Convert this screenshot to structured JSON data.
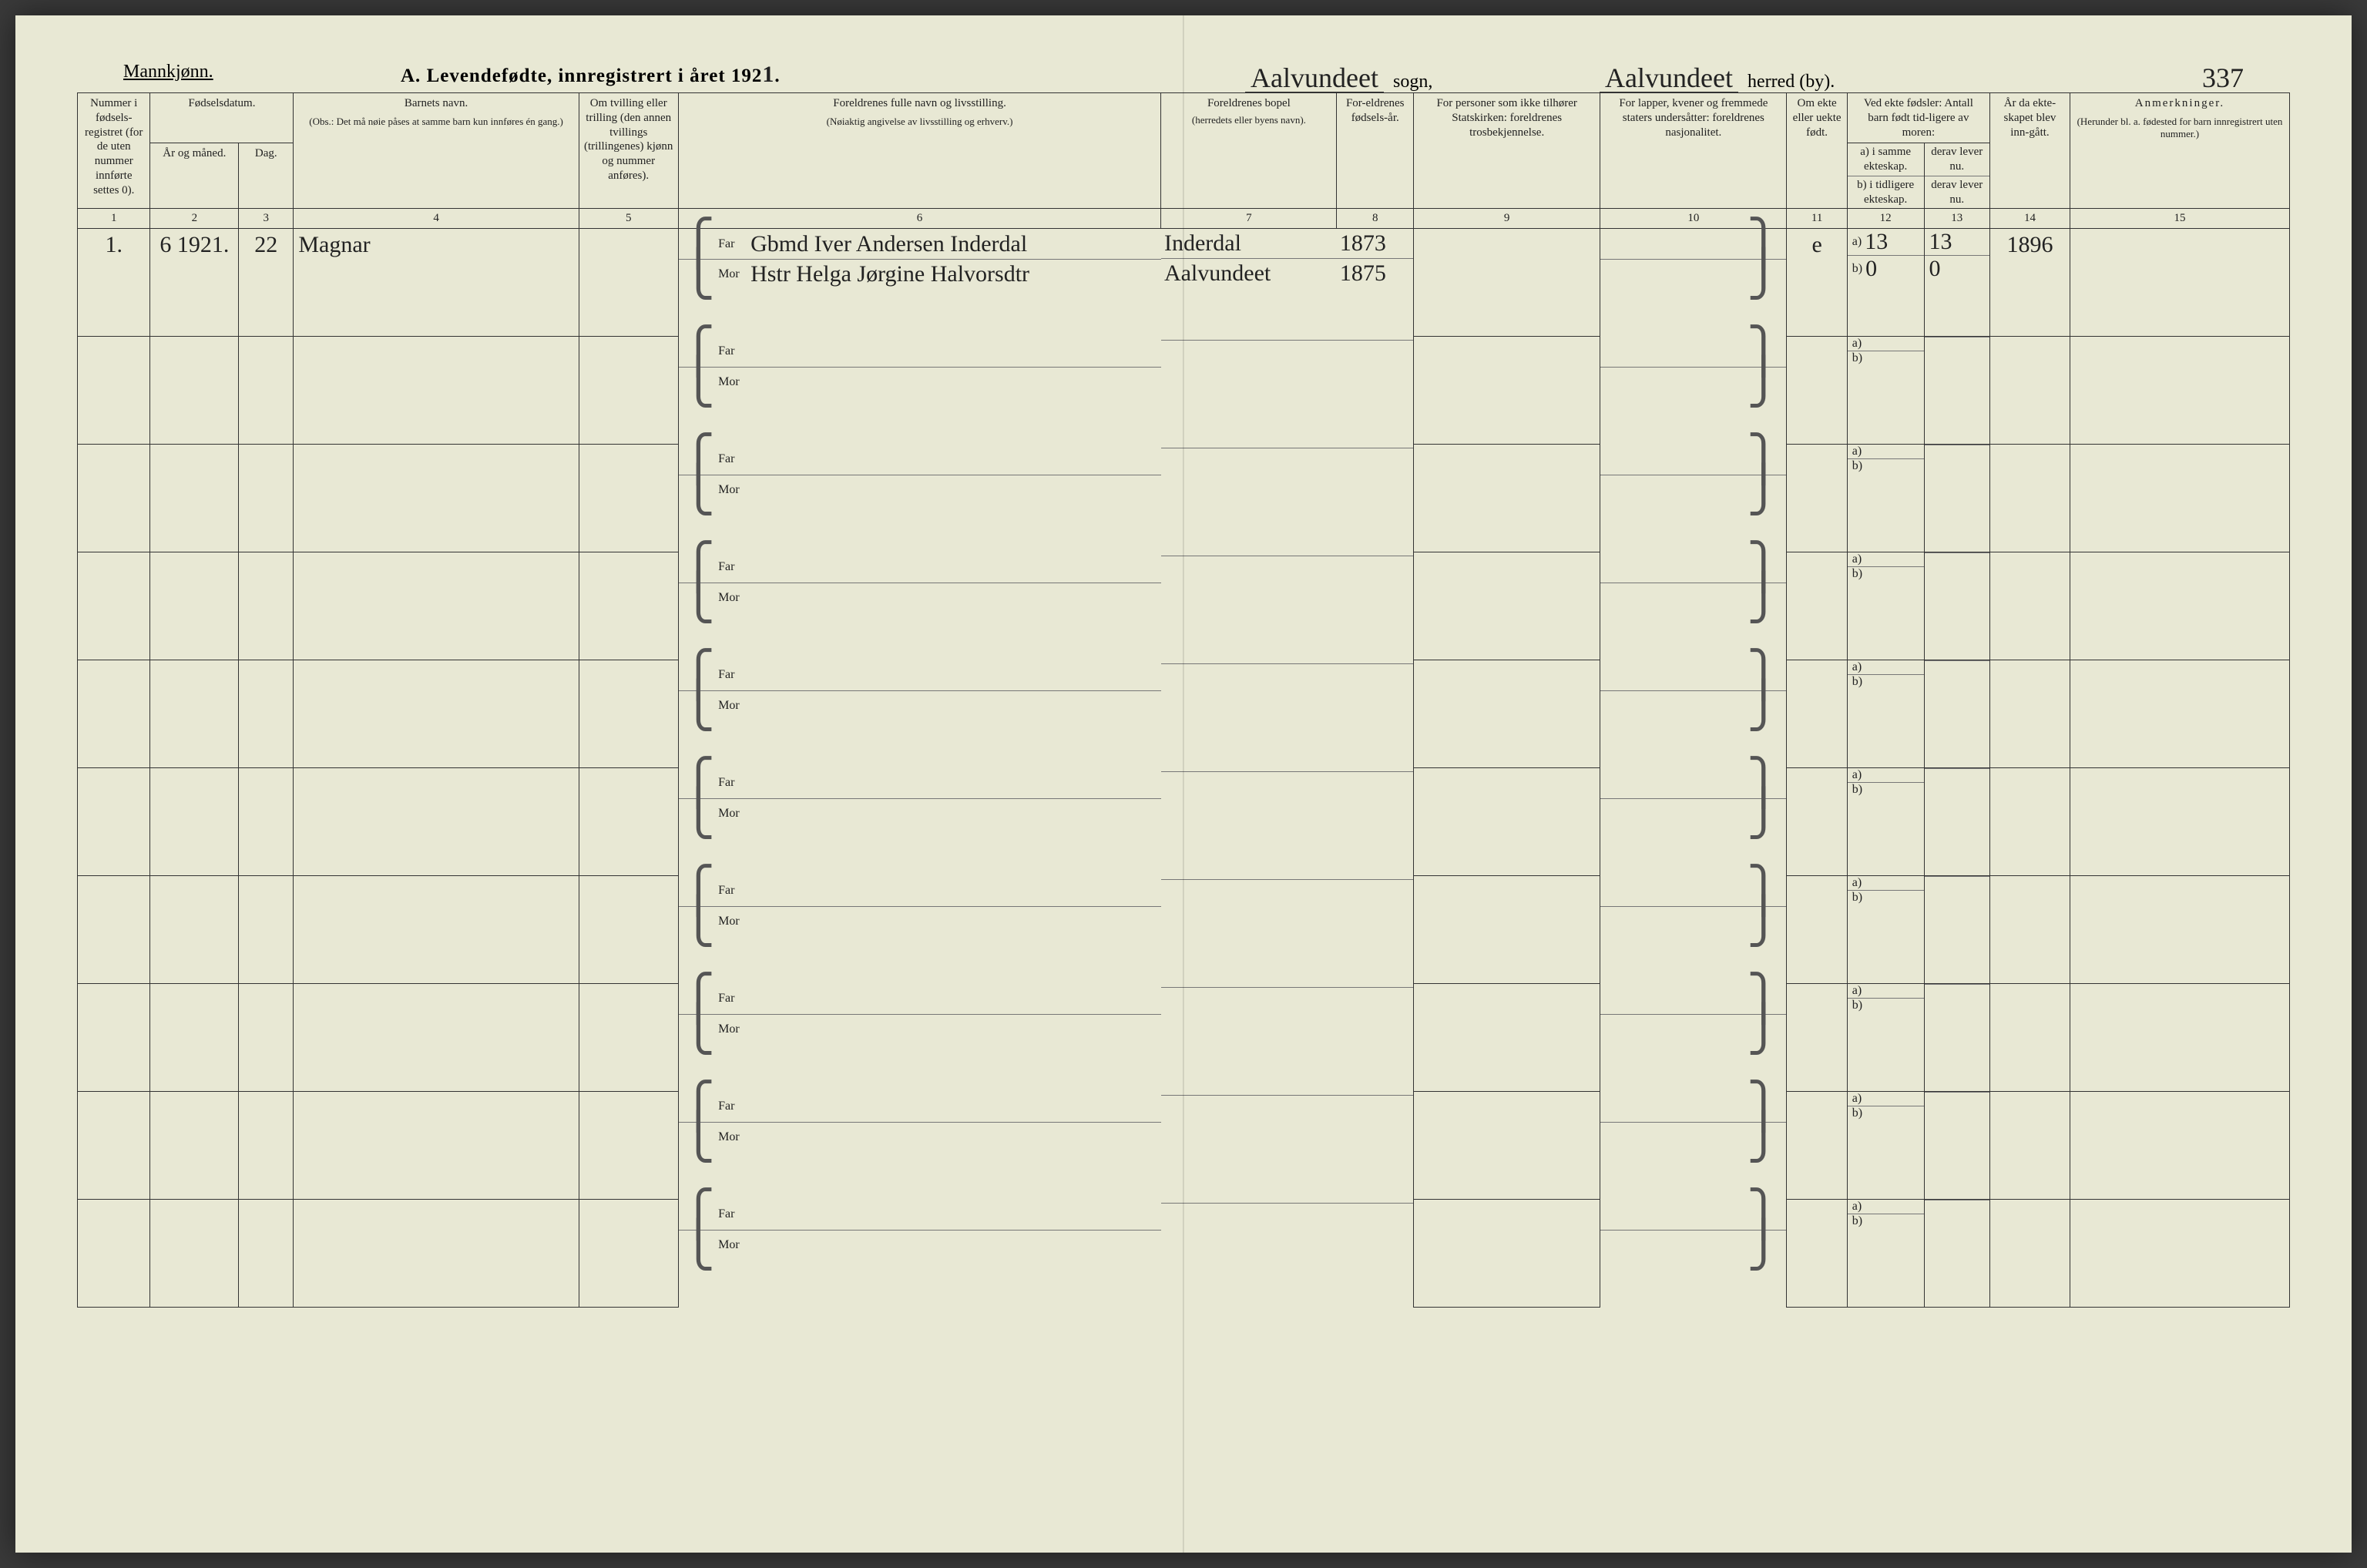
{
  "header": {
    "gender_label": "Mannkjønn.",
    "title_prefix": "A.",
    "title": "Levendefødte, innregistrert i året 192",
    "year_suffix": "1",
    "sogn_value": "Aalvundeet",
    "sogn_label": "sogn,",
    "herred_value": "Aalvundeet",
    "herred_label": "herred (by).",
    "page_number": "337"
  },
  "columns": {
    "c1": "Nummer i fødsels-registret (for de uten nummer innførte settes 0).",
    "c2_group": "Fødselsdatum.",
    "c2": "År og måned.",
    "c3": "Dag.",
    "c4_title": "Barnets navn.",
    "c4_note": "(Obs.: Det må nøie påses at samme barn kun innføres én gang.)",
    "c5": "Om tvilling eller trilling (den annen tvillings (trillingenes) kjønn og nummer anføres).",
    "c6_title": "Foreldrenes fulle navn og livsstilling.",
    "c6_note": "(Nøiaktig angivelse av livsstilling og erhverv.)",
    "c7_title": "Foreldrenes bopel",
    "c7_note": "(herredets eller byens navn).",
    "c8": "For-eldrenes fødsels-år.",
    "c9": "For personer som ikke tilhører Statskirken: foreldrenes trosbekjennelse.",
    "c10": "For lapper, kvener og fremmede staters undersåtter: foreldrenes nasjonalitet.",
    "c11": "Om ekte eller uekte født.",
    "c12_group": "Ved ekte fødsler: Antall barn født tid-ligere av moren:",
    "c12_a": "a) i samme ekteskap.",
    "c12_b": "b) i tidligere ekteskap.",
    "c13_a": "derav lever nu.",
    "c13_b": "derav lever nu.",
    "c14": "År da ekte-skapet blev inn-gått.",
    "c15_title": "Anmerkninger.",
    "c15_note": "(Herunder bl. a. fødested for barn innregistrert uten nummer.)",
    "far": "Far",
    "mor": "Mor",
    "a": "a)",
    "b": "b)"
  },
  "colnums": [
    "1",
    "2",
    "3",
    "4",
    "5",
    "6",
    "7",
    "8",
    "9",
    "10",
    "11",
    "12",
    "13",
    "14",
    "15"
  ],
  "rows": [
    {
      "num": "1.",
      "year_month": "6 1921.",
      "day": "22",
      "name": "Magnar",
      "twin": "",
      "far": "Gbmd Iver Andersen Inderdal",
      "mor": "Hstr Helga Jørgine Halvorsdtr",
      "bopel_far": "Inderdal",
      "bopel_mor": "Aalvundeet",
      "faar_far": "1873",
      "faar_mor": "1875",
      "c9": "",
      "c10": "",
      "ekte": "e",
      "c12a": "13",
      "c12b": "0",
      "c13a": "13",
      "c13b": "0",
      "c14": "1896",
      "anm": ""
    },
    {},
    {},
    {},
    {},
    {},
    {},
    {},
    {},
    {}
  ]
}
